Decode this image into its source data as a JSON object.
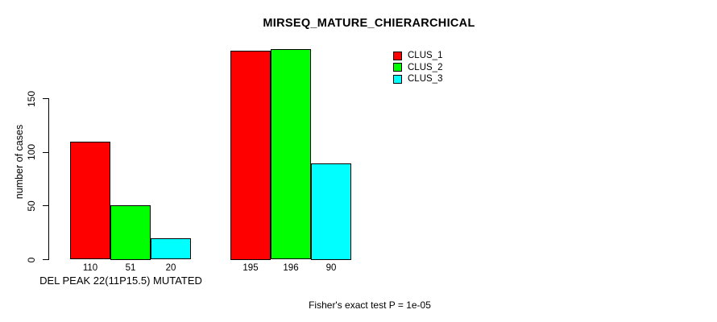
{
  "chart_data": {
    "type": "bar",
    "title": "MIRSEQ_MATURE_CHIERARCHICAL",
    "ylabel": "number of cases",
    "xlabel": "DEL PEAK 22(11P15.5) MUTATED",
    "ylim": [
      0,
      150
    ],
    "yticks": [
      0,
      50,
      100,
      150
    ],
    "grid": false,
    "legend_position": "top-right",
    "n_groups": 2,
    "series": [
      {
        "name": "CLUS_1",
        "color": "#ff0000",
        "values": [
          110,
          195
        ]
      },
      {
        "name": "CLUS_2",
        "color": "#00ff00",
        "values": [
          51,
          196
        ]
      },
      {
        "name": "CLUS_3",
        "color": "#00ffff",
        "values": [
          20,
          90
        ]
      }
    ],
    "bar_value_labels": [
      [
        110,
        51,
        20
      ],
      [
        195,
        196,
        90
      ]
    ],
    "annotation": "Fisher's exact test P = 1e-05"
  },
  "colors": {
    "background": "#ffffff",
    "axis": "#000000",
    "text": "#000000",
    "clus_1": "#ff0000",
    "clus_2": "#00ff00",
    "clus_3": "#00ffff"
  }
}
